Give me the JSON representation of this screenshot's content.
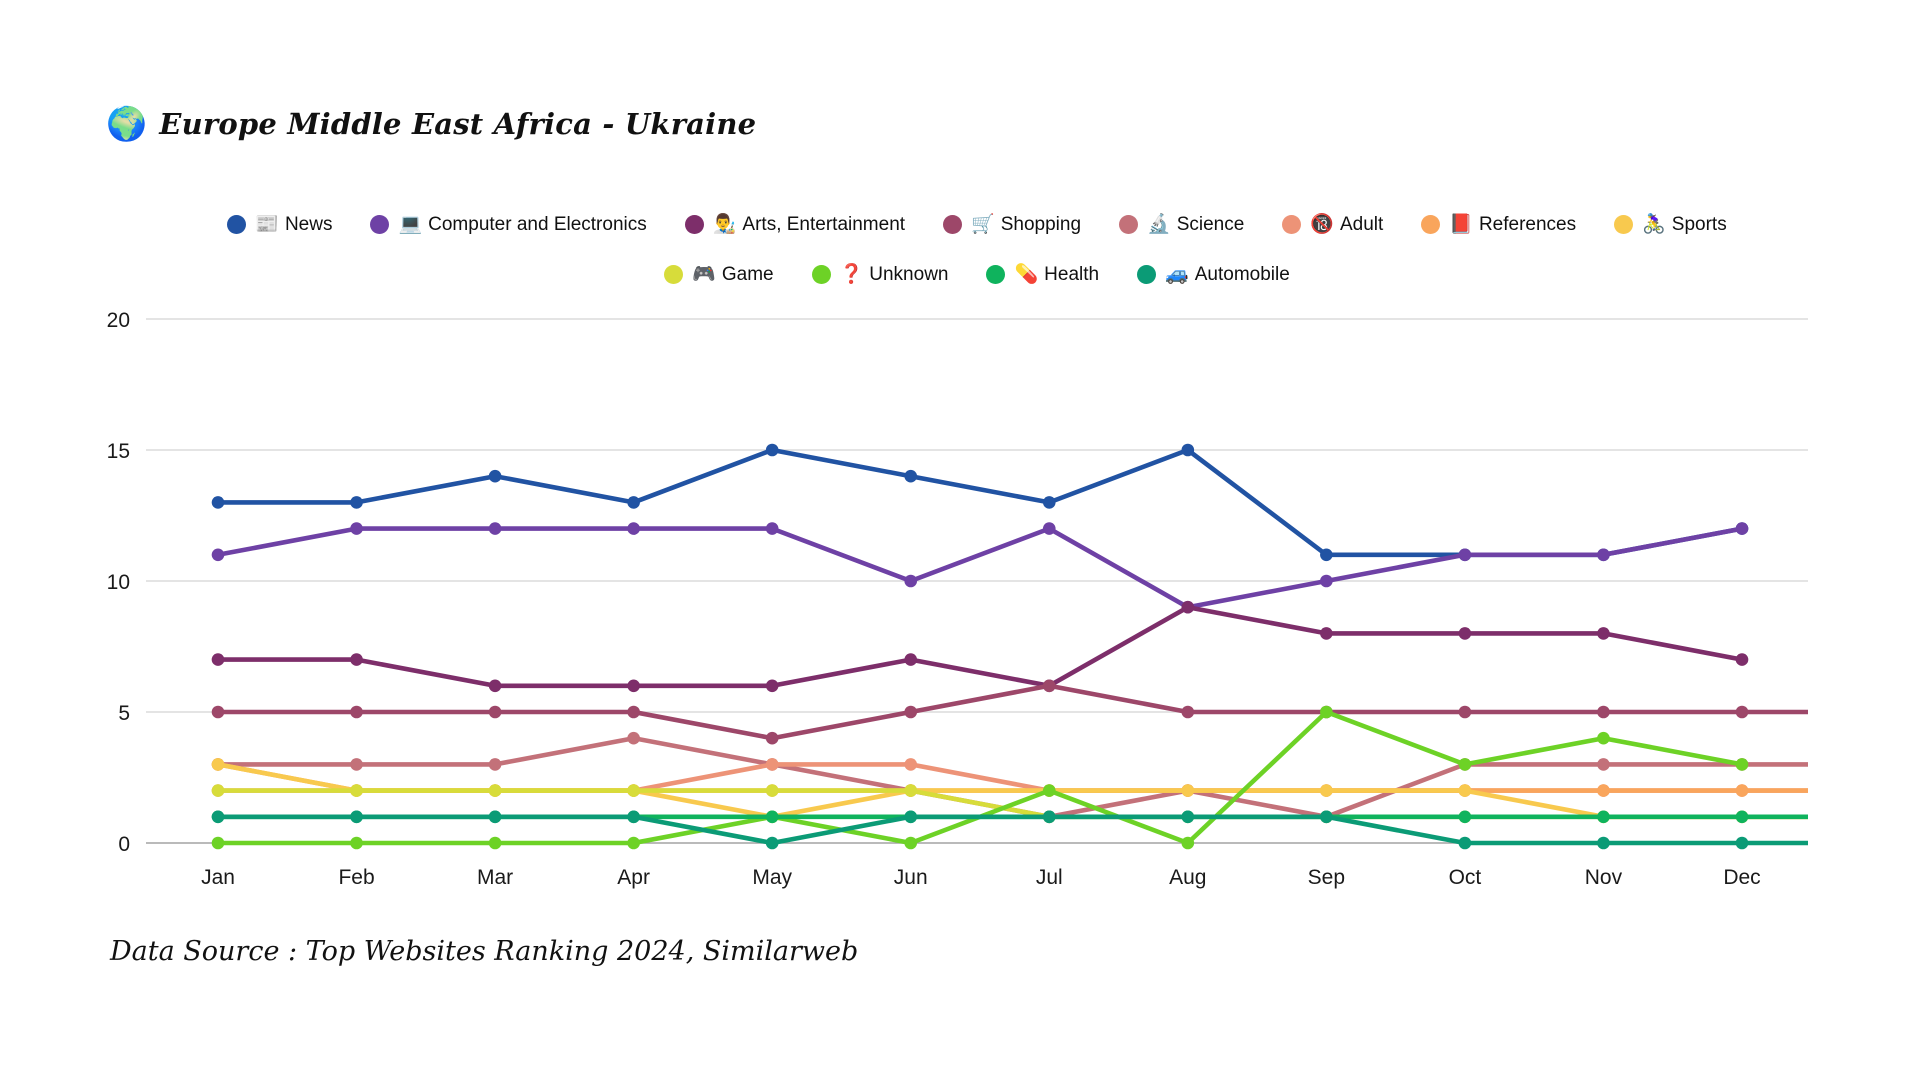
{
  "title": {
    "icon": "🌍",
    "text": "Europe Middle East Africa - Ukraine"
  },
  "source_note": "Data Source : Top Websites Ranking 2024, Similarweb",
  "chart_data": {
    "type": "line",
    "x": [
      "Jan",
      "Feb",
      "Mar",
      "Apr",
      "May",
      "Jun",
      "Jul",
      "Aug",
      "Sep",
      "Oct",
      "Nov",
      "Dec"
    ],
    "y_ticks": [
      0,
      5,
      10,
      15,
      20
    ],
    "ylim": [
      0,
      20
    ],
    "grid": "horizontal",
    "legend_position": "top-center-two-rows",
    "axis_colors": {
      "gridline": "#dcdcdc",
      "zero_line": "#a3a3a3",
      "tick_text": "#1a1a1a"
    },
    "series": [
      {
        "name": "News",
        "icon": "📰",
        "color": "#2153A3",
        "values": [
          13,
          13,
          14,
          13,
          15,
          14,
          13,
          15,
          11,
          11,
          11,
          12
        ]
      },
      {
        "name": "Computer and Electronics",
        "icon": "💻",
        "color": "#6E41A5",
        "values": [
          11,
          12,
          12,
          12,
          12,
          10,
          12,
          9,
          10,
          11,
          11,
          12
        ]
      },
      {
        "name": "Arts, Entertainment",
        "icon": "👨‍🎨",
        "color": "#7D2E6A",
        "values": [
          7,
          7,
          6,
          6,
          6,
          7,
          6,
          9,
          8,
          8,
          8,
          7
        ]
      },
      {
        "name": "Shopping",
        "icon": "🛒",
        "color": "#9D4769",
        "values": [
          5,
          5,
          5,
          5,
          4,
          5,
          6,
          5,
          5,
          5,
          5,
          5
        ]
      },
      {
        "name": "Science",
        "icon": "🔬",
        "color": "#C37179",
        "values": [
          3,
          3,
          3,
          4,
          3,
          2,
          1,
          2,
          1,
          3,
          3,
          3
        ]
      },
      {
        "name": "Adult",
        "icon": "🔞",
        "color": "#ED9377",
        "values": [
          2,
          2,
          2,
          2,
          3,
          3,
          2,
          2,
          2,
          2,
          2,
          2
        ]
      },
      {
        "name": "References",
        "icon": "📕",
        "color": "#F9A55C",
        "values": [
          3,
          2,
          2,
          2,
          2,
          2,
          2,
          2,
          2,
          2,
          2,
          2
        ]
      },
      {
        "name": "Sports",
        "icon": "🚴‍♀️",
        "color": "#F8C94E",
        "values": [
          3,
          2,
          2,
          2,
          1,
          2,
          2,
          2,
          2,
          2,
          1,
          1
        ]
      },
      {
        "name": "Game",
        "icon": "🎮",
        "color": "#D7DC3A",
        "values": [
          2,
          2,
          2,
          2,
          2,
          2,
          1,
          1,
          1,
          1,
          1,
          1
        ]
      },
      {
        "name": "Unknown",
        "icon": "❓",
        "color": "#6DD226",
        "values": [
          0,
          0,
          0,
          0,
          1,
          0,
          2,
          0,
          5,
          3,
          4,
          3
        ]
      },
      {
        "name": "Health",
        "icon": "💊",
        "color": "#0FB35D",
        "values": [
          1,
          1,
          1,
          1,
          1,
          1,
          1,
          1,
          1,
          1,
          1,
          1
        ]
      },
      {
        "name": "Automobile",
        "icon": "🚙",
        "color": "#0B9B76",
        "values": [
          1,
          1,
          1,
          1,
          0,
          1,
          1,
          1,
          1,
          0,
          0,
          0
        ]
      }
    ]
  }
}
